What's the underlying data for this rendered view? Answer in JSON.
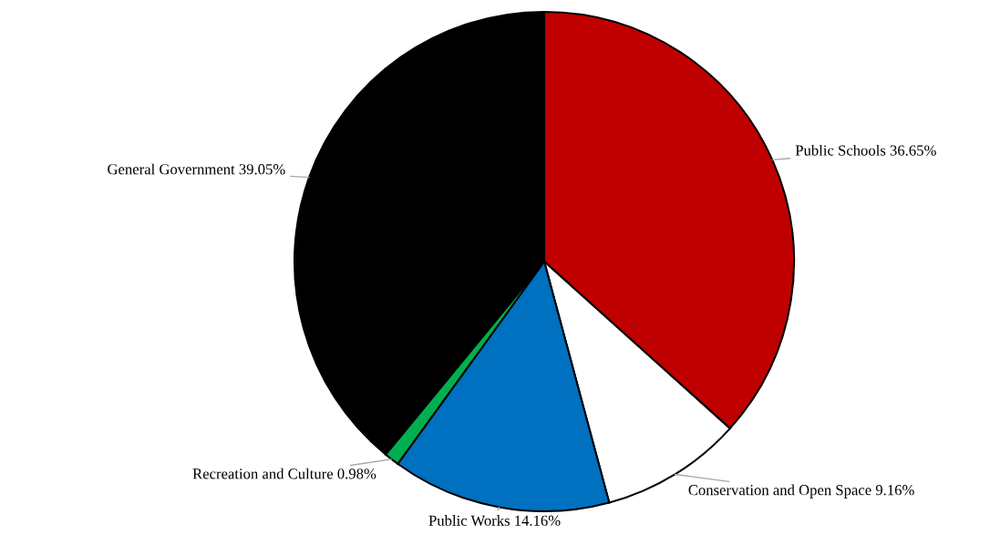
{
  "chart_data": {
    "type": "pie",
    "categories": [
      "Public Schools",
      "Conservation and Open Space",
      "Public Works",
      "Recreation and Culture",
      "General Government"
    ],
    "values": [
      36.65,
      9.16,
      14.16,
      0.98,
      39.05
    ],
    "value_labels": [
      "36.65%",
      "9.16%",
      "14.16%",
      "0.98%",
      "39.05%"
    ],
    "colors": [
      "#c00000",
      "#ffffff",
      "#0070c0",
      "#00b050",
      "#000000"
    ],
    "legend": false
  }
}
